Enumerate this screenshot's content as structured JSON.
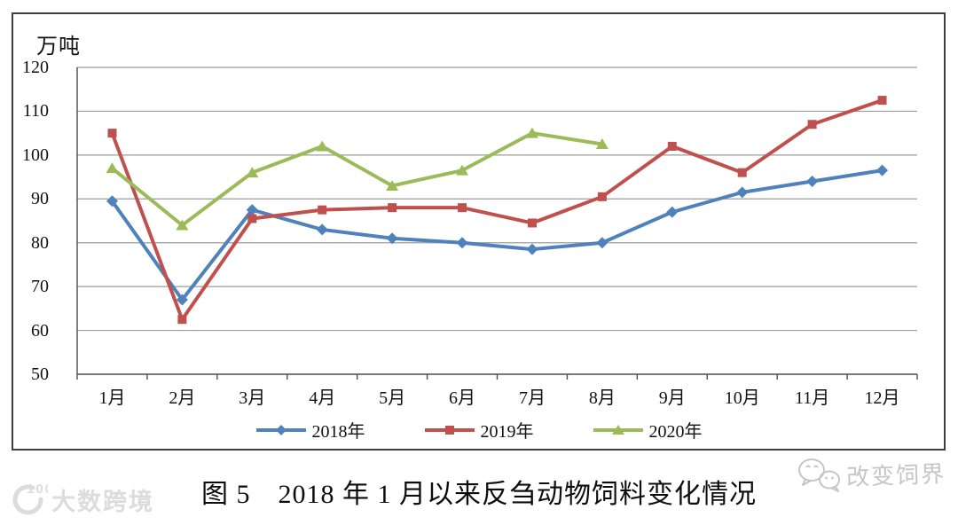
{
  "chart_data": {
    "type": "line",
    "title": "图 5　2018 年 1 月以来反刍动物饲料变化情况",
    "unit_label": "万吨",
    "xlabel": "",
    "ylabel": "万吨",
    "categories": [
      "1月",
      "2月",
      "3月",
      "4月",
      "5月",
      "6月",
      "7月",
      "8月",
      "9月",
      "10月",
      "11月",
      "12月"
    ],
    "series": [
      {
        "name": "2018年",
        "color": "#4F81BD",
        "marker": "diamond",
        "values": [
          89.5,
          67,
          87.5,
          83,
          81,
          80,
          78.5,
          80,
          87,
          91.5,
          94,
          96.5
        ]
      },
      {
        "name": "2019年",
        "color": "#C0504D",
        "marker": "square",
        "values": [
          105,
          62.5,
          85.5,
          87.5,
          88,
          88,
          84.5,
          90.5,
          102,
          96,
          107,
          112.5
        ]
      },
      {
        "name": "2020年",
        "color": "#9BBB59",
        "marker": "triangle",
        "values": [
          97,
          84,
          96,
          102,
          93,
          96.5,
          105,
          102.5,
          null,
          null,
          null,
          null
        ]
      }
    ],
    "ylim": [
      50,
      120
    ],
    "ytick_step": 10,
    "grid": true,
    "legend_position": "bottom",
    "gridline_color": "#9c9c9c",
    "axis_color": "#4d4d4d"
  },
  "watermarks": {
    "bottom_left": {
      "badge": "100",
      "text": "大数跨境"
    },
    "bottom_right": {
      "text": "改变饲界"
    }
  }
}
